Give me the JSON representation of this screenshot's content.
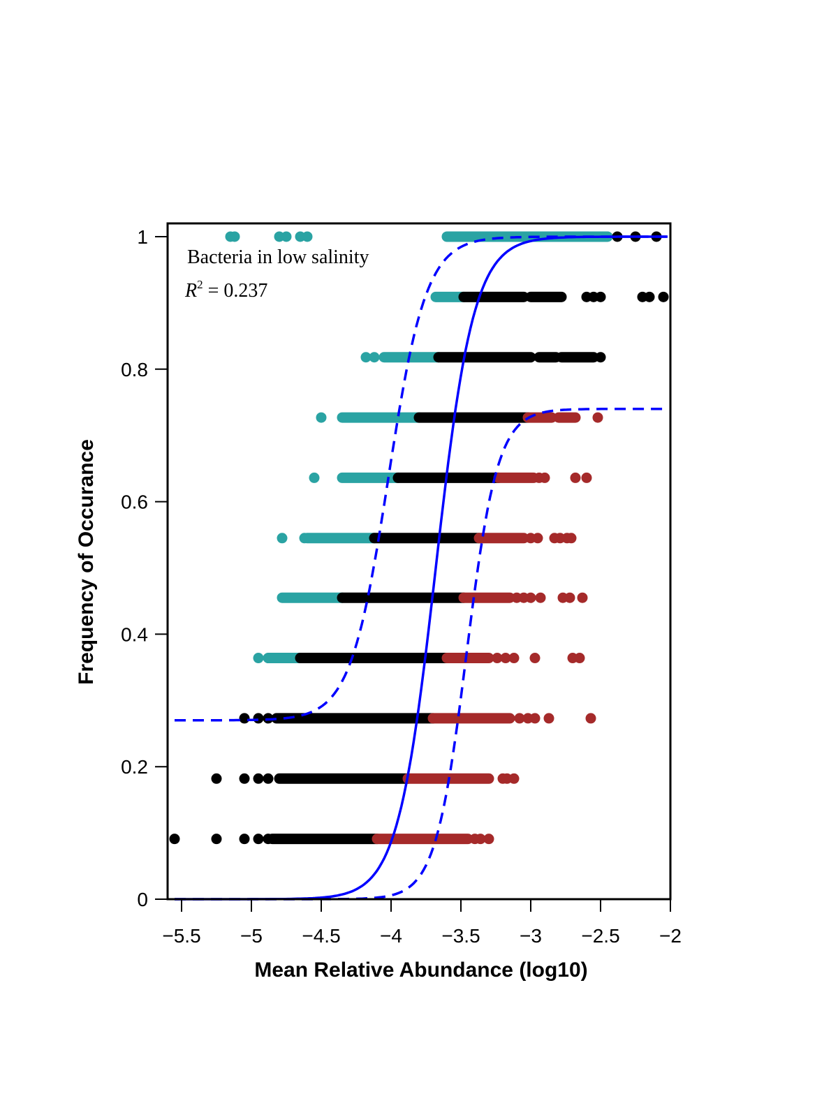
{
  "chart_data": {
    "type": "scatter",
    "title": "",
    "xlabel": "Mean Relative Abundance (log10)",
    "ylabel": "Frequency of Occurance",
    "xlim": [
      -5.6,
      -2.0
    ],
    "ylim": [
      0,
      1.02
    ],
    "xticks": [
      -5.5,
      -5,
      -4.5,
      -4,
      -3.5,
      -3,
      -2.5,
      -2
    ],
    "yticks": [
      0,
      0.2,
      0.4,
      0.6,
      0.8,
      1
    ],
    "grid": false,
    "annotation": {
      "line1": "Bacteria in low salinity",
      "r2_symbol": "R",
      "r2_exponent": "2",
      "r2_text": " = 0.237"
    },
    "colors": {
      "above": "#2aa3a3",
      "neutral": "#000000",
      "below": "#a52a2a",
      "fit": "#0000ff"
    },
    "curves": {
      "fit": {
        "style": "solid",
        "asymptote": 1.0,
        "midpoint": -3.68,
        "slope": 3.2
      },
      "upper_ci": {
        "style": "dashed",
        "asymptote": 1.0,
        "midpoint": -4.02,
        "slope": 3.2,
        "offset": 0.27
      },
      "lower_ci": {
        "style": "dashed",
        "asymptote": 0.74,
        "midpoint": -3.46,
        "slope": 3.9
      }
    },
    "series": [
      {
        "group": "neutral",
        "y": 0.091,
        "ranges": [
          [
            -4.85,
            -4.1
          ]
        ],
        "x": [
          -5.55,
          -5.25,
          -5.05,
          -4.95,
          -4.88
        ]
      },
      {
        "group": "below",
        "y": 0.091,
        "ranges": [
          [
            -4.1,
            -3.45
          ]
        ],
        "x": [
          -3.4,
          -3.36,
          -3.3
        ]
      },
      {
        "group": "neutral",
        "y": 0.182,
        "ranges": [
          [
            -4.8,
            -3.88
          ]
        ],
        "x": [
          -5.25,
          -5.05,
          -4.95,
          -4.88
        ]
      },
      {
        "group": "below",
        "y": 0.182,
        "ranges": [
          [
            -3.88,
            -3.3
          ]
        ],
        "x": [
          -3.2,
          -3.17,
          -3.12
        ]
      },
      {
        "group": "neutral",
        "y": 0.273,
        "ranges": [
          [
            -4.82,
            -3.7
          ]
        ],
        "x": [
          -5.05,
          -4.95,
          -4.88
        ]
      },
      {
        "group": "below",
        "y": 0.273,
        "ranges": [
          [
            -3.7,
            -3.15
          ]
        ],
        "x": [
          -3.08,
          -3.02,
          -2.97,
          -2.87,
          -2.57
        ]
      },
      {
        "group": "above",
        "y": 0.364,
        "ranges": [
          [
            -4.88,
            -4.65
          ]
        ],
        "x": [
          -4.95
        ]
      },
      {
        "group": "neutral",
        "y": 0.364,
        "ranges": [
          [
            -4.65,
            -3.6
          ]
        ],
        "x": []
      },
      {
        "group": "below",
        "y": 0.364,
        "ranges": [
          [
            -3.6,
            -3.3
          ]
        ],
        "x": [
          -3.24,
          -3.18,
          -3.12,
          -2.97,
          -2.7,
          -2.65
        ]
      },
      {
        "group": "above",
        "y": 0.455,
        "ranges": [
          [
            -4.78,
            -4.35
          ]
        ],
        "x": []
      },
      {
        "group": "neutral",
        "y": 0.455,
        "ranges": [
          [
            -4.35,
            -3.48
          ]
        ],
        "x": []
      },
      {
        "group": "below",
        "y": 0.455,
        "ranges": [
          [
            -3.48,
            -3.15
          ]
        ],
        "x": [
          -3.1,
          -3.05,
          -3.0,
          -2.93,
          -2.77,
          -2.72,
          -2.63
        ]
      },
      {
        "group": "above",
        "y": 0.545,
        "ranges": [
          [
            -4.6,
            -4.12
          ]
        ],
        "x": [
          -4.78,
          -4.62
        ]
      },
      {
        "group": "neutral",
        "y": 0.545,
        "ranges": [
          [
            -4.12,
            -3.37
          ]
        ],
        "x": []
      },
      {
        "group": "below",
        "y": 0.545,
        "ranges": [
          [
            -3.37,
            -3.05
          ]
        ],
        "x": [
          -3.0,
          -2.95,
          -2.83,
          -2.79,
          -2.74,
          -2.71
        ]
      },
      {
        "group": "above",
        "y": 0.636,
        "ranges": [
          [
            -4.35,
            -3.95
          ]
        ],
        "x": [
          -4.55
        ]
      },
      {
        "group": "neutral",
        "y": 0.636,
        "ranges": [
          [
            -3.95,
            -3.23
          ]
        ],
        "x": []
      },
      {
        "group": "below",
        "y": 0.636,
        "ranges": [
          [
            -3.23,
            -2.98
          ]
        ],
        "x": [
          -2.94,
          -2.9,
          -2.68,
          -2.6
        ]
      },
      {
        "group": "above",
        "y": 0.727,
        "ranges": [
          [
            -4.35,
            -3.8
          ]
        ],
        "x": [
          -4.5
        ]
      },
      {
        "group": "neutral",
        "y": 0.727,
        "ranges": [
          [
            -3.8,
            -3.02
          ]
        ],
        "x": []
      },
      {
        "group": "below",
        "y": 0.727,
        "ranges": [
          [
            -3.02,
            -2.85
          ],
          [
            -2.8,
            -2.68
          ]
        ],
        "x": [
          -2.52
        ]
      },
      {
        "group": "above",
        "y": 0.818,
        "ranges": [
          [
            -4.05,
            -3.66
          ]
        ],
        "x": [
          -4.18,
          -4.12
        ]
      },
      {
        "group": "neutral",
        "y": 0.818,
        "ranges": [
          [
            -3.66,
            -3.0
          ],
          [
            -2.94,
            -2.82
          ],
          [
            -2.78,
            -2.55
          ]
        ],
        "x": [
          -2.5
        ]
      },
      {
        "group": "above",
        "y": 0.909,
        "ranges": [
          [
            -3.68,
            -3.48
          ]
        ],
        "x": []
      },
      {
        "group": "neutral",
        "y": 0.909,
        "ranges": [
          [
            -3.48,
            -3.05
          ],
          [
            -3.0,
            -2.78
          ]
        ],
        "x": [
          -2.6,
          -2.55,
          -2.5,
          -2.2,
          -2.15,
          -2.05
        ]
      },
      {
        "group": "above",
        "y": 1.0,
        "ranges": [
          [
            -3.6,
            -2.45
          ]
        ],
        "x": [
          -5.15,
          -5.12,
          -4.8,
          -4.75,
          -4.65,
          -4.6
        ]
      },
      {
        "group": "neutral",
        "y": 1.0,
        "ranges": [],
        "x": [
          -2.38,
          -2.25,
          -2.1
        ]
      }
    ]
  }
}
